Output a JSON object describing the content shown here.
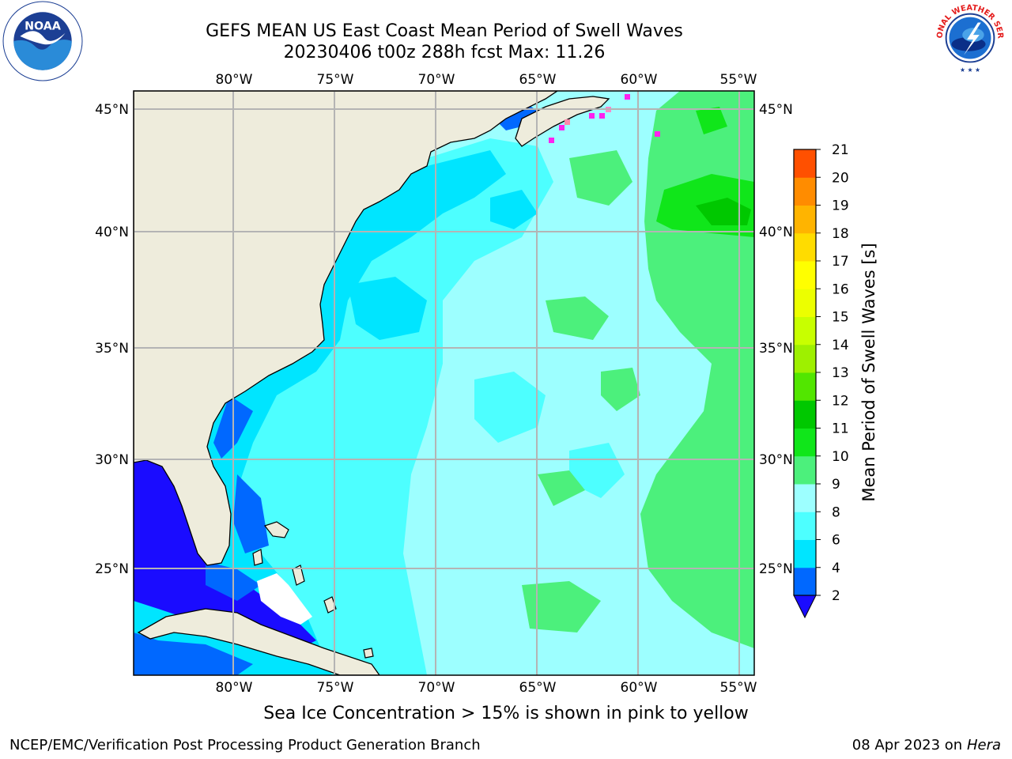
{
  "title": {
    "line1": "GEFS MEAN US East Coast Mean Period of Swell Waves",
    "line2": "20230406 t00z 288h fcst   Max: 11.26"
  },
  "logos": {
    "left": {
      "icon": "noaa-logo",
      "text": "NOAA"
    },
    "right": {
      "icon": "nws-logo",
      "text": "NATIONAL WEATHER SERVICE"
    }
  },
  "map": {
    "lon_range": [
      -85,
      -54
    ],
    "lat_range": [
      20.5,
      45.9
    ],
    "lon_ticks": [
      "80°W",
      "75°W",
      "70°W",
      "65°W",
      "60°W",
      "55°W"
    ],
    "lat_ticks": [
      "45°N",
      "40°N",
      "35°N",
      "30°N",
      "25°N"
    ],
    "gridlines": true,
    "land_color": "#eeecdc",
    "grid_color": "#b4b4b4"
  },
  "colorbar": {
    "label": "Mean Period of Swell Waves [s]",
    "ticks": [
      "2",
      "4",
      "6",
      "8",
      "9",
      "10",
      "11",
      "12",
      "13",
      "14",
      "15",
      "16",
      "17",
      "18",
      "19",
      "20",
      "21"
    ],
    "colors": [
      "#0068ff",
      "#00e5ff",
      "#4dffff",
      "#9dffff",
      "#4cf07c",
      "#10e61a",
      "#00c800",
      "#52e600",
      "#9ef000",
      "#c8ff00",
      "#ecff00",
      "#ffff00",
      "#ffdc00",
      "#ffb400",
      "#ff8c00",
      "#ff5000",
      "#ff1e00",
      "#ff0000"
    ],
    "under_color": "#1a0cff"
  },
  "sea_ice_note": "Sea Ice Concentration > 15% is shown in pink to yellow",
  "footer": {
    "left": "NCEP/EMC/Verification Post Processing Product Generation Branch",
    "right_date": "08 Apr 2023 on",
    "right_host": "Hera"
  }
}
